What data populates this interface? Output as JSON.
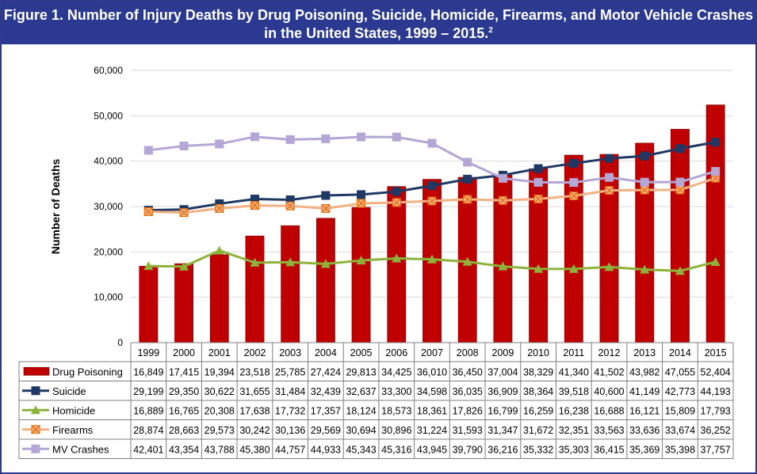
{
  "title": "Figure 1. Number of Injury Deaths by Drug Poisoning, Suicide, Homicide, Firearms, and Motor Vehicle Crashes in the United States, 1999 – 2015.",
  "title_superscript": "2",
  "chart_data": {
    "type": "bar-line",
    "title": "Figure 1. Number of Injury Deaths by Drug Poisoning, Suicide, Homicide, Firearms, and Motor Vehicle Crashes in the United States, 1999 – 2015.",
    "xlabel": "",
    "ylabel": "Number of Deaths",
    "ylim": [
      0,
      60000
    ],
    "yticks": [
      "0",
      "10,000",
      "20,000",
      "30,000",
      "40,000",
      "50,000",
      "60,000"
    ],
    "categories": [
      "1999",
      "2000",
      "2001",
      "2002",
      "2003",
      "2004",
      "2005",
      "2006",
      "2007",
      "2008",
      "2009",
      "2010",
      "2011",
      "2012",
      "2013",
      "2014",
      "2015"
    ],
    "grid": true,
    "legend": "data-table-left",
    "series": [
      {
        "name": "Drug Poisoning",
        "type": "bar",
        "color": "#c00000",
        "values": [
          16849,
          17415,
          19394,
          23518,
          25785,
          27424,
          29813,
          34425,
          36010,
          36450,
          37004,
          38329,
          41340,
          41502,
          43982,
          47055,
          52404
        ],
        "labels": [
          "16,849",
          "17,415",
          "19,394",
          "23,518",
          "25,785",
          "27,424",
          "29,813",
          "34,425",
          "36,010",
          "36,450",
          "37,004",
          "38,329",
          "41,340",
          "41,502",
          "43,982",
          "47,055",
          "52,404"
        ]
      },
      {
        "name": "Suicide",
        "type": "line",
        "marker": "square",
        "color": "#1f3864",
        "values": [
          29199,
          29350,
          30622,
          31655,
          31484,
          32439,
          32637,
          33300,
          34598,
          36035,
          36909,
          38364,
          39518,
          40600,
          41149,
          42773,
          44193
        ],
        "labels": [
          "29,199",
          "29,350",
          "30,622",
          "31,655",
          "31,484",
          "32,439",
          "32,637",
          "33,300",
          "34,598",
          "36,035",
          "36,909",
          "38,364",
          "39,518",
          "40,600",
          "41,149",
          "42,773",
          "44,193"
        ]
      },
      {
        "name": "Homicide",
        "type": "line",
        "marker": "triangle",
        "color": "#8db33b",
        "values": [
          16889,
          16765,
          20308,
          17638,
          17732,
          17357,
          18124,
          18573,
          18361,
          17826,
          16799,
          16259,
          16238,
          16688,
          16121,
          15809,
          17793
        ],
        "labels": [
          "16,889",
          "16,765",
          "20,308",
          "17,638",
          "17,732",
          "17,357",
          "18,124",
          "18,573",
          "18,361",
          "17,826",
          "16,799",
          "16,259",
          "16,238",
          "16,688",
          "16,121",
          "15,809",
          "17,793"
        ]
      },
      {
        "name": "Firearms",
        "type": "line",
        "marker": "x-square",
        "color": "#f4b183",
        "values": [
          28874,
          28663,
          29573,
          30242,
          30136,
          29569,
          30694,
          30896,
          31224,
          31593,
          31347,
          31672,
          32351,
          33563,
          33636,
          33674,
          36252
        ],
        "labels": [
          "28,874",
          "28,663",
          "29,573",
          "30,242",
          "30,136",
          "29,569",
          "30,694",
          "30,896",
          "31,224",
          "31,593",
          "31,347",
          "31,672",
          "32,351",
          "33,563",
          "33,636",
          "33,674",
          "36,252"
        ]
      },
      {
        "name": "MV Crashes",
        "type": "line",
        "marker": "square",
        "color": "#b4a7d6",
        "values": [
          42401,
          43354,
          43788,
          45380,
          44757,
          44933,
          45343,
          45316,
          43945,
          39790,
          36216,
          35332,
          35303,
          36415,
          35369,
          35398,
          37757
        ],
        "labels": [
          "42,401",
          "43,354",
          "43,788",
          "45,380",
          "44,757",
          "44,933",
          "45,343",
          "45,316",
          "43,945",
          "39,790",
          "36,216",
          "35,332",
          "35,303",
          "36,415",
          "35,369",
          "35,398",
          "37,757"
        ]
      }
    ]
  }
}
